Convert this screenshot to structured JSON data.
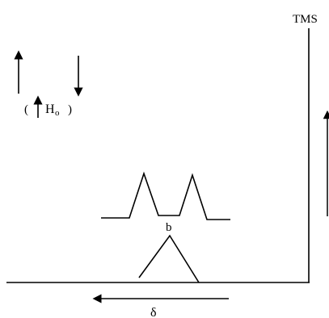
{
  "labels": {
    "tms": "TMS",
    "field_open": "(",
    "field_h": "H",
    "field_sub": "o",
    "field_close": ")",
    "peak_label": "b",
    "shift": "δ"
  },
  "colors": {
    "ink": "#000000",
    "background": "#ffffff"
  }
}
